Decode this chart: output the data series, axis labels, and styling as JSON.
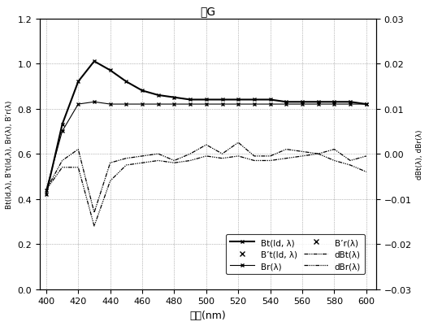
{
  "title": "紙G",
  "xlabel": "波長(nm)",
  "ylabel_left": "Bt(Id,λ), B't(Id,λ), Br(λ), B'r(λ)",
  "ylabel_right": "dBt(λ), dBr(λ)",
  "wavelengths": [
    400,
    410,
    420,
    430,
    440,
    450,
    460,
    470,
    480,
    490,
    500,
    510,
    520,
    530,
    540,
    550,
    560,
    570,
    580,
    590,
    600
  ],
  "Bt": [
    0.42,
    0.73,
    0.92,
    1.01,
    0.97,
    0.92,
    0.88,
    0.86,
    0.85,
    0.84,
    0.84,
    0.84,
    0.84,
    0.84,
    0.84,
    0.83,
    0.83,
    0.83,
    0.83,
    0.83,
    0.82
  ],
  "Br": [
    0.44,
    0.7,
    0.82,
    0.83,
    0.82,
    0.82,
    0.82,
    0.82,
    0.82,
    0.82,
    0.82,
    0.82,
    0.82,
    0.82,
    0.82,
    0.82,
    0.82,
    0.82,
    0.82,
    0.82,
    0.82
  ],
  "dBt": [
    0.44,
    0.57,
    0.62,
    0.34,
    0.56,
    0.58,
    0.59,
    0.6,
    0.57,
    0.6,
    0.64,
    0.6,
    0.65,
    0.59,
    0.59,
    0.62,
    0.61,
    0.6,
    0.62,
    0.57,
    0.59
  ],
  "dBr": [
    0.44,
    0.54,
    0.54,
    0.28,
    0.48,
    0.55,
    0.56,
    0.57,
    0.56,
    0.57,
    0.59,
    0.58,
    0.59,
    0.57,
    0.57,
    0.58,
    0.59,
    0.6,
    0.57,
    0.55,
    0.52
  ],
  "ylim_left": [
    0,
    1.2
  ],
  "ylim_right": [
    -0.03,
    0.03
  ],
  "xticks": [
    400,
    420,
    440,
    460,
    480,
    500,
    520,
    540,
    560,
    580,
    600
  ],
  "yticks_left": [
    0,
    0.2,
    0.4,
    0.6,
    0.8,
    1.0,
    1.2
  ],
  "yticks_right": [
    -0.03,
    -0.02,
    -0.01,
    0,
    0.01,
    0.02,
    0.03
  ]
}
